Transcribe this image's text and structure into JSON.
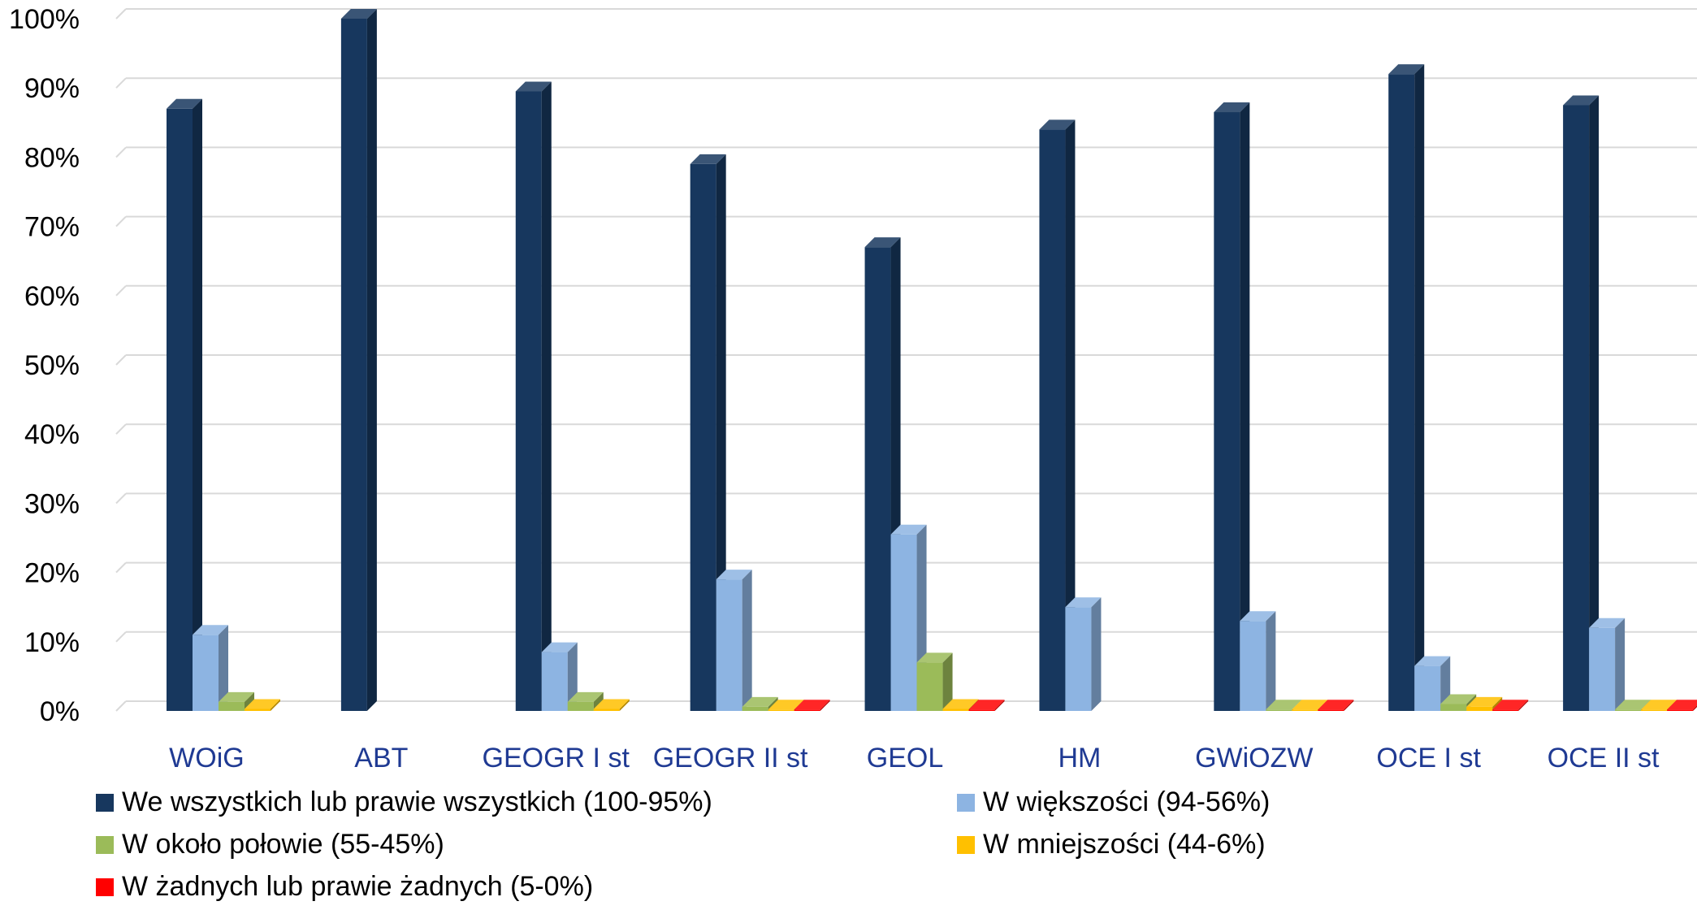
{
  "chart_data": {
    "type": "bar",
    "title": "",
    "xlabel": "",
    "ylabel": "",
    "ylim": [
      0,
      100
    ],
    "yticks": [
      "0%",
      "10%",
      "20%",
      "30%",
      "40%",
      "50%",
      "60%",
      "70%",
      "80%",
      "90%",
      "100%"
    ],
    "categories": [
      "WOiG",
      "ABT",
      "GEOGR I st",
      "GEOGR II st",
      "GEOL",
      "HM",
      "GWiOZW",
      "OCE I st",
      "OCE II st"
    ],
    "series": [
      {
        "name": "We wszystkich lub prawie wszystkich (100-95%)",
        "color": "#17375e",
        "values": [
          87,
          100,
          89.5,
          79,
          67,
          84,
          86.5,
          92,
          87.5
        ]
      },
      {
        "name": "W większości (94-56%)",
        "color": "#8db4e2",
        "values": [
          11,
          0,
          8.5,
          19,
          25.5,
          15,
          13,
          6.5,
          12
        ]
      },
      {
        "name": "W około połowie (55-45%)",
        "color": "#9bbb59",
        "values": [
          1.3,
          0,
          1.3,
          0.6,
          7,
          0,
          0.2,
          1,
          0.2
        ]
      },
      {
        "name": "W mniejszości (44-6%)",
        "color": "#ffc000",
        "values": [
          0.3,
          0,
          0.3,
          0.2,
          0.3,
          0,
          0.2,
          0.6,
          0.2
        ]
      },
      {
        "name": "W żadnych lub prawie żadnych (5-0%)",
        "color": "#ff0000",
        "values": [
          0,
          0,
          0,
          0.2,
          0.2,
          0,
          0.2,
          0.2,
          0.2
        ]
      }
    ],
    "grid": true,
    "legend_position": "bottom"
  }
}
